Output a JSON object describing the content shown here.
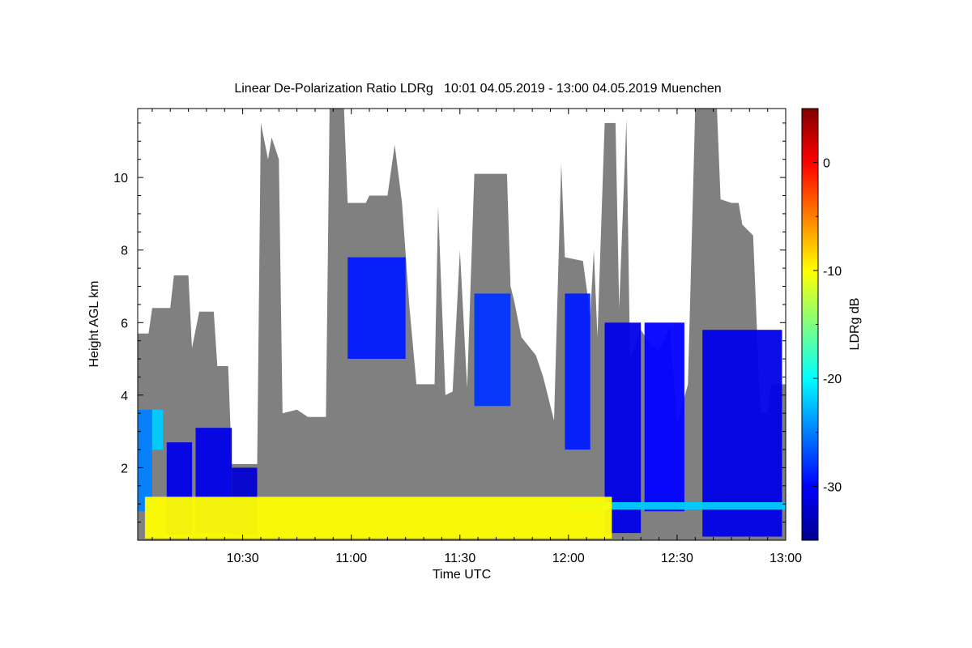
{
  "chart_data": {
    "type": "heatmap",
    "title": "Linear De-Polarization Ratio LDRg   10:01 04.05.2019 - 13:00 04.05.2019 Muenchen",
    "xlabel": "Time UTC",
    "ylabel": "Height AGL km",
    "colorbar_label": "LDRg dB",
    "xlim_minutes_utc": [
      601,
      780
    ],
    "x_ticks": [
      {
        "minute": 630,
        "label": "10:30"
      },
      {
        "minute": 660,
        "label": "11:00"
      },
      {
        "minute": 690,
        "label": "11:30"
      },
      {
        "minute": 720,
        "label": "12:00"
      },
      {
        "minute": 750,
        "label": "12:30"
      },
      {
        "minute": 780,
        "label": "13:00"
      }
    ],
    "ylim": [
      0,
      11.9
    ],
    "y_ticks": [
      {
        "value": 2,
        "label": "2"
      },
      {
        "value": 4,
        "label": "4"
      },
      {
        "value": 6,
        "label": "6"
      },
      {
        "value": 8,
        "label": "8"
      },
      {
        "value": 10,
        "label": "10"
      }
    ],
    "colorbar_range": [
      -35,
      5
    ],
    "colorbar_ticks": [
      {
        "value": 0,
        "label": "0"
      },
      {
        "value": -10,
        "label": "-10"
      },
      {
        "value": -20,
        "label": "-20"
      },
      {
        "value": -30,
        "label": "-30"
      }
    ],
    "colormap": [
      "#00008f",
      "#0000ff",
      "#00ffff",
      "#ffff00",
      "#ff0000",
      "#800000"
    ],
    "masked_color": "#808080",
    "signal_top_km": [
      [
        601,
        5.7
      ],
      [
        604,
        5.7
      ],
      [
        605,
        6.4
      ],
      [
        610,
        6.4
      ],
      [
        611,
        7.3
      ],
      [
        615,
        7.3
      ],
      [
        616,
        5.3
      ],
      [
        618,
        6.3
      ],
      [
        622,
        6.3
      ],
      [
        623,
        4.8
      ],
      [
        626,
        4.8
      ],
      [
        627,
        2.1
      ],
      [
        634,
        2.1
      ],
      [
        635,
        11.5
      ],
      [
        637,
        10.5
      ],
      [
        638,
        11.1
      ],
      [
        640,
        10.5
      ],
      [
        641,
        3.5
      ],
      [
        645,
        3.6
      ],
      [
        648,
        3.4
      ],
      [
        653,
        3.4
      ],
      [
        654,
        11.9
      ],
      [
        658,
        11.9
      ],
      [
        659,
        9.3
      ],
      [
        664,
        9.3
      ],
      [
        665,
        9.5
      ],
      [
        670,
        9.5
      ],
      [
        672,
        10.9
      ],
      [
        674,
        9.3
      ],
      [
        676,
        6.5
      ],
      [
        678,
        4.3
      ],
      [
        683,
        4.3
      ],
      [
        684,
        9.2
      ],
      [
        686,
        4.0
      ],
      [
        688,
        4.1
      ],
      [
        690,
        8.0
      ],
      [
        692,
        4.2
      ],
      [
        694,
        10.1
      ],
      [
        703,
        10.1
      ],
      [
        704,
        7.0
      ],
      [
        705,
        6.6
      ],
      [
        707,
        5.6
      ],
      [
        711,
        5.1
      ],
      [
        713,
        4.5
      ],
      [
        716,
        3.3
      ],
      [
        718,
        10.4
      ],
      [
        719,
        7.8
      ],
      [
        724,
        7.7
      ],
      [
        726,
        6.2
      ],
      [
        727,
        8.0
      ],
      [
        728,
        5.6
      ],
      [
        730,
        11.5
      ],
      [
        733,
        11.5
      ],
      [
        734,
        6.4
      ],
      [
        736,
        11.6
      ],
      [
        737,
        5.0
      ],
      [
        740,
        5.8
      ],
      [
        742,
        5.5
      ],
      [
        745,
        5.2
      ],
      [
        748,
        5.9
      ],
      [
        750,
        3.2
      ],
      [
        753,
        4.3
      ],
      [
        755,
        11.9
      ],
      [
        761,
        11.9
      ],
      [
        762,
        9.4
      ],
      [
        765,
        9.3
      ],
      [
        767,
        9.3
      ],
      [
        768,
        8.7
      ],
      [
        771,
        8.4
      ],
      [
        773,
        3.5
      ],
      [
        775,
        3.5
      ],
      [
        776,
        4.3
      ],
      [
        780,
        4.3
      ]
    ],
    "regions": [
      {
        "t0": 601,
        "t1": 605,
        "h0": 0.8,
        "h1": 3.6,
        "ldr_db": -25
      },
      {
        "t0": 605,
        "t1": 608,
        "h0": 2.5,
        "h1": 3.6,
        "ldr_db": -22
      },
      {
        "t0": 609,
        "t1": 616,
        "h0": 0.15,
        "h1": 2.7,
        "ldr_db": -31
      },
      {
        "t0": 617,
        "t1": 627,
        "h0": 0.2,
        "h1": 3.1,
        "ldr_db": -31
      },
      {
        "t0": 627,
        "t1": 634,
        "h0": 0.15,
        "h1": 2.0,
        "ldr_db": -32
      },
      {
        "t0": 659,
        "t1": 675,
        "h0": 5.0,
        "h1": 7.8,
        "ldr_db": -29
      },
      {
        "t0": 694,
        "t1": 704,
        "h0": 3.7,
        "h1": 6.8,
        "ldr_db": -28
      },
      {
        "t0": 719,
        "t1": 726,
        "h0": 2.5,
        "h1": 6.8,
        "ldr_db": -29
      },
      {
        "t0": 730,
        "t1": 740,
        "h0": 0.2,
        "h1": 6.0,
        "ldr_db": -31
      },
      {
        "t0": 741,
        "t1": 752,
        "h0": 0.8,
        "h1": 6.0,
        "ldr_db": -30
      },
      {
        "t0": 757,
        "t1": 779,
        "h0": 0.1,
        "h1": 5.8,
        "ldr_db": -31
      },
      {
        "t0": 720,
        "t1": 780,
        "h0": 0.85,
        "h1": 1.05,
        "ldr_db": -22
      },
      {
        "t0": 603,
        "t1": 732,
        "h0": 0.05,
        "h1": 1.2,
        "ldr_db": -10
      }
    ]
  }
}
